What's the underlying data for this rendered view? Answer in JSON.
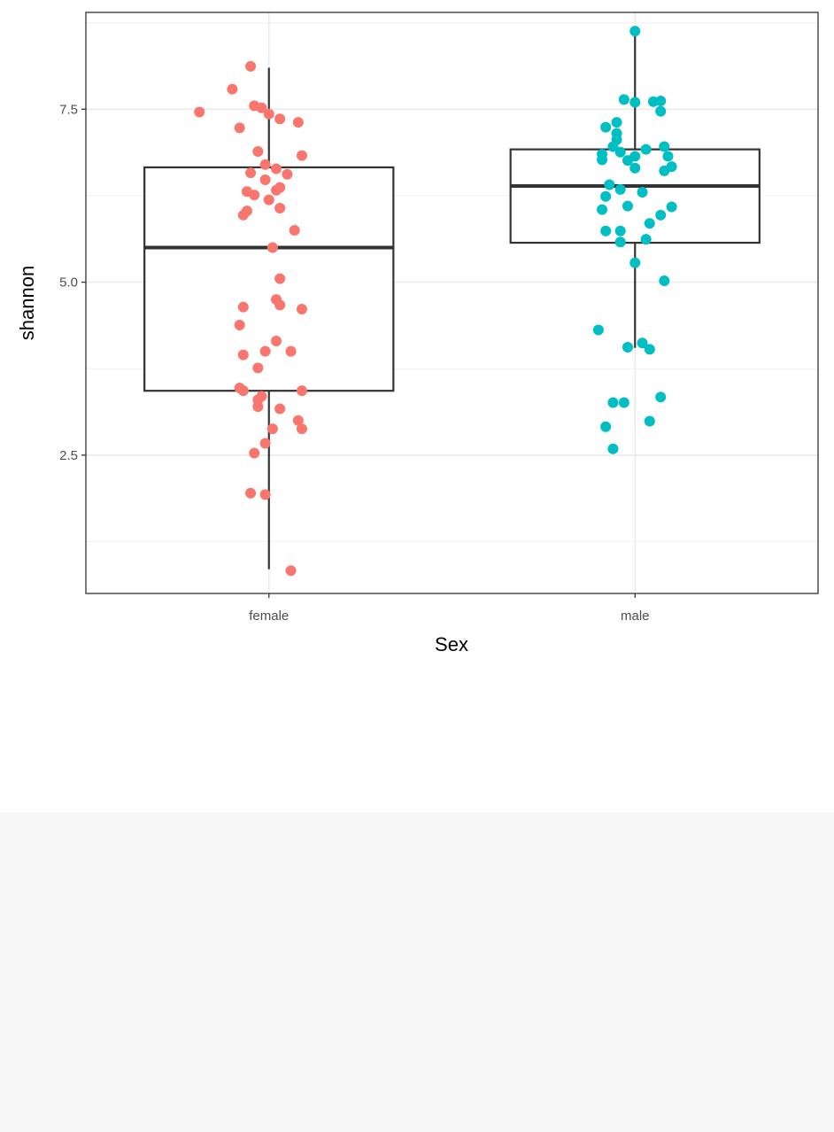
{
  "chart_data": {
    "type": "box",
    "title": "",
    "xlabel": "Sex",
    "ylabel": "shannon",
    "categories": [
      "female",
      "male"
    ],
    "ylim": [
      0.5,
      8.9
    ],
    "y_ticks": [
      2.5,
      5.0,
      7.5
    ],
    "y_tick_labels": [
      "2.5",
      "5.0",
      "7.5"
    ],
    "grid": true,
    "legend": "none",
    "colors": {
      "female": "#F8766D",
      "male": "#00BFC4"
    },
    "boxes": [
      {
        "category": "female",
        "min": 0.85,
        "q1": 3.43,
        "median": 5.5,
        "q3": 6.66,
        "max": 8.1
      },
      {
        "category": "male",
        "min": 4.05,
        "q1": 5.57,
        "median": 6.39,
        "q3": 6.92,
        "max": 8.63
      }
    ],
    "points": {
      "female": [
        [
          -0.05,
          8.12
        ],
        [
          -0.1,
          7.79
        ],
        [
          -0.04,
          7.55
        ],
        [
          -0.02,
          7.52
        ],
        [
          0.0,
          7.43
        ],
        [
          0.03,
          7.36
        ],
        [
          -0.19,
          7.46
        ],
        [
          0.08,
          7.31
        ],
        [
          -0.08,
          7.23
        ],
        [
          -0.03,
          6.89
        ],
        [
          0.09,
          6.83
        ],
        [
          -0.01,
          6.7
        ],
        [
          0.02,
          6.64
        ],
        [
          -0.05,
          6.58
        ],
        [
          0.05,
          6.56
        ],
        [
          -0.01,
          6.48
        ],
        [
          0.03,
          6.37
        ],
        [
          0.02,
          6.33
        ],
        [
          -0.06,
          6.31
        ],
        [
          -0.04,
          6.26
        ],
        [
          0.0,
          6.19
        ],
        [
          0.03,
          6.07
        ],
        [
          -0.06,
          6.03
        ],
        [
          -0.07,
          5.97
        ],
        [
          0.07,
          5.75
        ],
        [
          0.01,
          5.5
        ],
        [
          0.03,
          5.05
        ],
        [
          0.02,
          4.75
        ],
        [
          0.03,
          4.67
        ],
        [
          -0.07,
          4.64
        ],
        [
          0.09,
          4.61
        ],
        [
          -0.08,
          4.38
        ],
        [
          0.02,
          4.15
        ],
        [
          0.06,
          4.0
        ],
        [
          -0.01,
          4.0
        ],
        [
          -0.07,
          3.95
        ],
        [
          -0.03,
          3.76
        ],
        [
          -0.08,
          3.47
        ],
        [
          -0.07,
          3.43
        ],
        [
          0.09,
          3.43
        ],
        [
          -0.02,
          3.35
        ],
        [
          -0.03,
          3.3
        ],
        [
          -0.03,
          3.2
        ],
        [
          0.03,
          3.17
        ],
        [
          0.08,
          3.0
        ],
        [
          0.09,
          2.88
        ],
        [
          0.01,
          2.88
        ],
        [
          -0.01,
          2.67
        ],
        [
          -0.04,
          2.53
        ],
        [
          -0.05,
          1.95
        ],
        [
          -0.01,
          1.93
        ],
        [
          0.06,
          0.83
        ]
      ],
      "male": [
        [
          0.0,
          8.63
        ],
        [
          -0.03,
          7.64
        ],
        [
          0.05,
          7.61
        ],
        [
          0.07,
          7.62
        ],
        [
          0.0,
          7.6
        ],
        [
          0.07,
          7.47
        ],
        [
          -0.05,
          7.31
        ],
        [
          -0.08,
          7.24
        ],
        [
          -0.05,
          7.15
        ],
        [
          -0.05,
          7.06
        ],
        [
          -0.06,
          6.96
        ],
        [
          0.08,
          6.96
        ],
        [
          0.03,
          6.92
        ],
        [
          -0.04,
          6.88
        ],
        [
          -0.09,
          6.85
        ],
        [
          0.0,
          6.82
        ],
        [
          0.09,
          6.82
        ],
        [
          -0.09,
          6.77
        ],
        [
          -0.02,
          6.76
        ],
        [
          0.1,
          6.67
        ],
        [
          0.0,
          6.65
        ],
        [
          0.08,
          6.61
        ],
        [
          -0.07,
          6.41
        ],
        [
          -0.04,
          6.34
        ],
        [
          0.02,
          6.3
        ],
        [
          -0.08,
          6.24
        ],
        [
          0.1,
          6.09
        ],
        [
          -0.02,
          6.1
        ],
        [
          -0.09,
          6.05
        ],
        [
          0.07,
          5.97
        ],
        [
          0.04,
          5.85
        ],
        [
          -0.08,
          5.74
        ],
        [
          -0.04,
          5.74
        ],
        [
          0.03,
          5.62
        ],
        [
          -0.04,
          5.58
        ],
        [
          0.0,
          5.28
        ],
        [
          0.08,
          5.02
        ],
        [
          -0.1,
          4.31
        ],
        [
          0.02,
          4.12
        ],
        [
          -0.02,
          4.06
        ],
        [
          0.04,
          4.03
        ],
        [
          0.07,
          3.34
        ],
        [
          -0.06,
          3.26
        ],
        [
          -0.03,
          3.26
        ],
        [
          0.04,
          2.99
        ],
        [
          -0.08,
          2.91
        ],
        [
          -0.06,
          2.59
        ]
      ]
    }
  }
}
